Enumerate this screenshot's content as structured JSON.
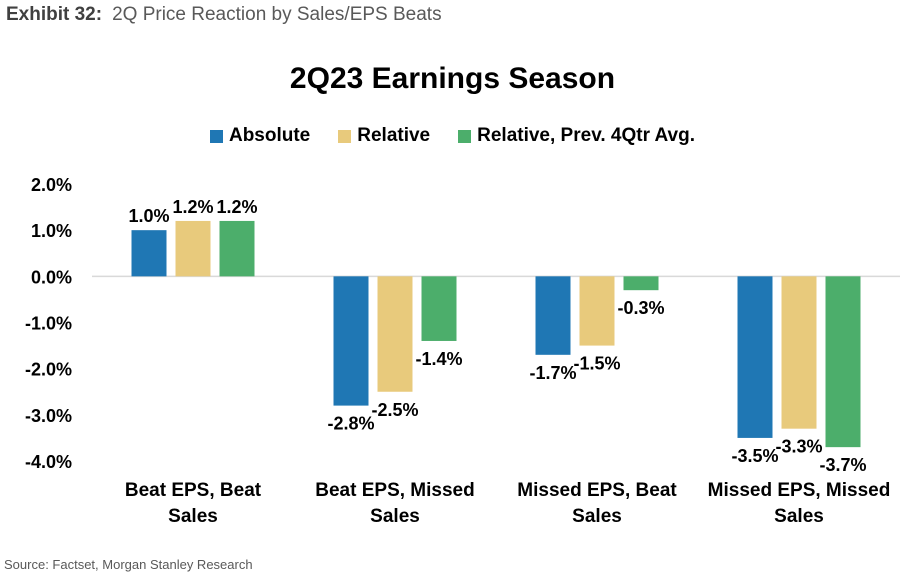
{
  "exhibit": {
    "number": "Exhibit 32:",
    "caption": "2Q Price Reaction by Sales/EPS Beats"
  },
  "source": "Source: Factset, Morgan Stanley Research",
  "chart_data": {
    "type": "bar",
    "title": "2Q23 Earnings Season",
    "xlabel": "",
    "ylabel": "",
    "ylim": [
      -4.0,
      2.0
    ],
    "yticks": [
      "2.0%",
      "1.0%",
      "0.0%",
      "-1.0%",
      "-2.0%",
      "-3.0%",
      "-4.0%"
    ],
    "ytick_values": [
      2,
      1,
      0,
      -1,
      -2,
      -3,
      -4
    ],
    "grid": false,
    "legend_position": "top",
    "categories": [
      [
        "Beat EPS, Beat",
        "Sales"
      ],
      [
        "Beat EPS, Missed",
        "Sales"
      ],
      [
        "Missed EPS, Beat",
        "Sales"
      ],
      [
        "Missed EPS, Missed",
        "Sales"
      ]
    ],
    "series": [
      {
        "name": "Absolute",
        "color": "#1f77b4",
        "values": [
          1.0,
          -2.8,
          -1.7,
          -3.5
        ],
        "labels": [
          "1.0%",
          "-2.8%",
          "-1.7%",
          "-3.5%"
        ]
      },
      {
        "name": "Relative",
        "color": "#e8ca7c",
        "values": [
          1.2,
          -2.5,
          -1.5,
          -3.3
        ],
        "labels": [
          "1.2%",
          "-2.5%",
          "-1.5%",
          "-3.3%"
        ]
      },
      {
        "name": "Relative, Prev. 4Qtr Avg.",
        "color": "#4cae6b",
        "values": [
          1.2,
          -1.4,
          -0.3,
          -3.7
        ],
        "labels": [
          "1.2%",
          "-1.4%",
          "-0.3%",
          "-3.7%"
        ]
      }
    ]
  }
}
